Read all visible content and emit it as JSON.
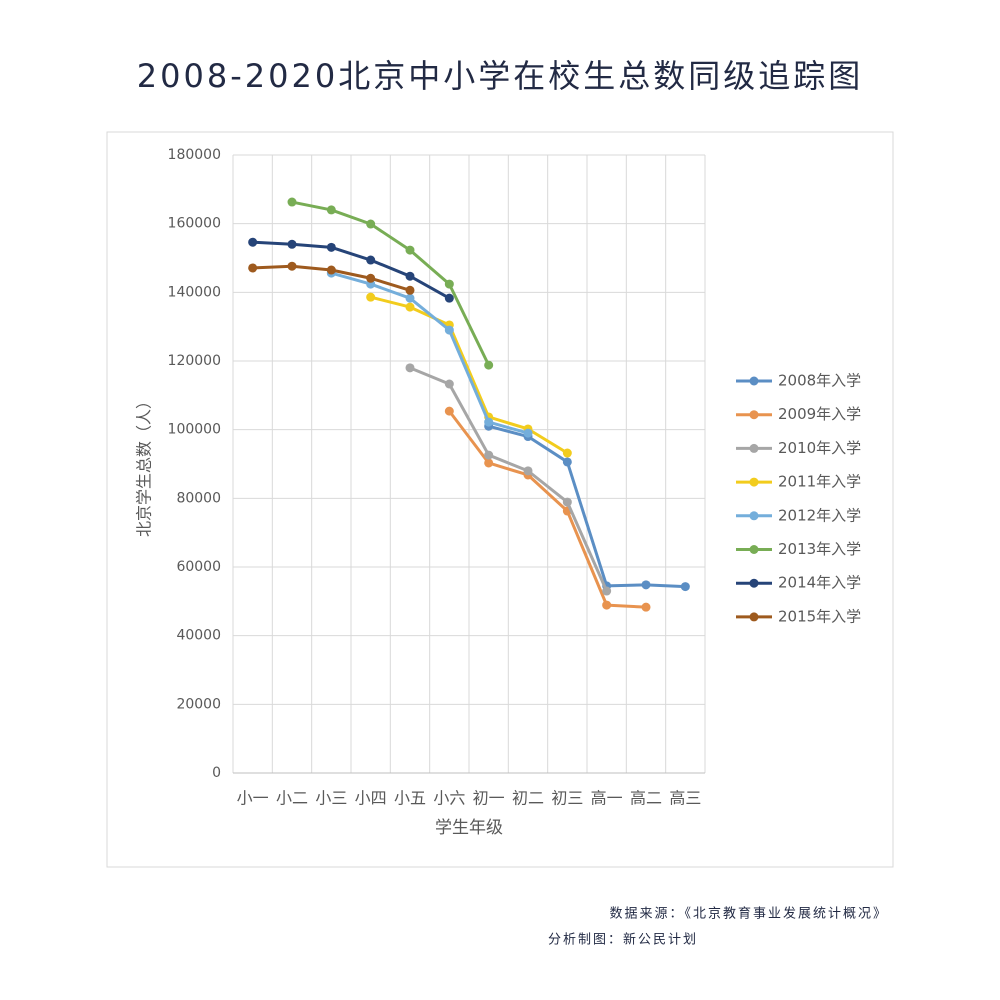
{
  "chart_data": {
    "type": "line",
    "title": "2008-2020北京中小学在校生总数同级追踪图",
    "y_label": "北京学生总数（人）",
    "x_label": "学生年级",
    "categories": [
      "小一",
      "小二",
      "小三",
      "小四",
      "小五",
      "小六",
      "初一",
      "初二",
      "初三",
      "高一",
      "高二",
      "高三"
    ],
    "ylim": [
      0,
      180000
    ],
    "yticks": [
      0,
      20000,
      40000,
      60000,
      80000,
      100000,
      120000,
      140000,
      160000,
      180000
    ],
    "grid": true,
    "legend": "right",
    "series": [
      {
        "name": "2008年入学",
        "color": "#5b8ec4",
        "values": [
          null,
          null,
          null,
          null,
          null,
          null,
          101000,
          98000,
          90600,
          54500,
          54800,
          54300
        ]
      },
      {
        "name": "2009年入学",
        "color": "#e8934f",
        "values": [
          null,
          null,
          null,
          null,
          null,
          105400,
          90300,
          86800,
          76300,
          48900,
          48300,
          null
        ]
      },
      {
        "name": "2010年入学",
        "color": "#a6a6a6",
        "values": [
          null,
          null,
          null,
          null,
          118000,
          113300,
          92600,
          88000,
          78900,
          53000,
          null,
          null
        ]
      },
      {
        "name": "2011年入学",
        "color": "#f2cc1d",
        "values": [
          null,
          null,
          null,
          138600,
          135700,
          130500,
          103700,
          100200,
          93200,
          null,
          null,
          null
        ]
      },
      {
        "name": "2012年入学",
        "color": "#74aedb",
        "values": [
          null,
          null,
          145600,
          142400,
          138300,
          129000,
          102200,
          99000,
          null,
          null,
          null,
          null
        ]
      },
      {
        "name": "2013年入学",
        "color": "#78ad55",
        "values": [
          null,
          166300,
          164000,
          159900,
          152300,
          142400,
          118800,
          null,
          null,
          null,
          null,
          null
        ]
      },
      {
        "name": "2014年入学",
        "color": "#264478",
        "values": [
          154600,
          154000,
          153100,
          149400,
          144700,
          138300,
          null,
          null,
          null,
          null,
          null,
          null
        ]
      },
      {
        "name": "2015年入学",
        "color": "#9e5a1e",
        "values": [
          147100,
          147600,
          146500,
          144100,
          140600,
          null,
          null,
          null,
          null,
          null,
          null,
          null
        ]
      }
    ]
  },
  "footer": {
    "source": "数据来源：《北京教育事业发展统计概况》",
    "author": "分析制图：新公民计划"
  }
}
